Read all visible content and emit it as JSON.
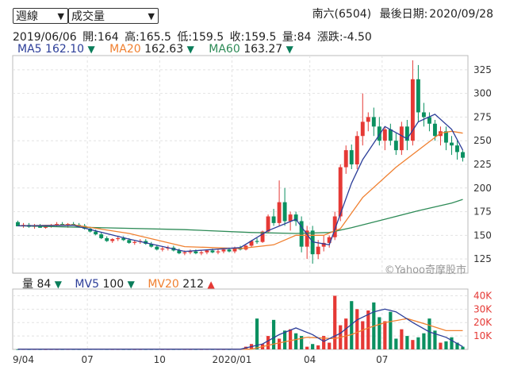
{
  "controls": {
    "period": "週線",
    "indicator": "成交量"
  },
  "header": {
    "stock": "南六(6504)",
    "last_date_label": "最後日期:",
    "last_date": "2020/09/28"
  },
  "ohlc": {
    "date": "2019/06/06",
    "open_label": "開:",
    "open": "164",
    "high_label": "高:",
    "high": "165.5",
    "low_label": "低:",
    "low": "159.5",
    "close_label": "收:",
    "close": "159.5",
    "volume_label": "量:",
    "volume": "84",
    "change_label": "漲跌:",
    "change": "-4.50"
  },
  "colors": {
    "up": "#e53935",
    "down": "#0a9060",
    "ma5": "#2c3e99",
    "ma20": "#f08030",
    "ma60": "#2e8b57"
  },
  "chart_data": [
    {
      "type": "candlestick",
      "watermark": "©Yahoo奇摩股市",
      "ylim": [
        110,
        340
      ],
      "y_ticks": [
        125,
        150,
        175,
        200,
        225,
        250,
        275,
        300,
        325
      ],
      "x_ticks": [
        "9/04",
        "07",
        "10",
        "2020/01",
        "04",
        "07"
      ],
      "legend": [
        {
          "name": "MA5",
          "value": "162.10",
          "dir": "down",
          "color": "#2c3e99"
        },
        {
          "name": "MA20",
          "value": "162.63",
          "dir": "down",
          "color": "#f08030"
        },
        {
          "name": "MA60",
          "value": "163.27",
          "dir": "down",
          "color": "#2e8b57"
        }
      ],
      "ohlc": [
        [
          164,
          165.5,
          159.5,
          159.5
        ],
        [
          160,
          163,
          158,
          161
        ],
        [
          161,
          163,
          158,
          159
        ],
        [
          159,
          162,
          157,
          160
        ],
        [
          160,
          162,
          158,
          158
        ],
        [
          158,
          161,
          157,
          160
        ],
        [
          160,
          162,
          158,
          161
        ],
        [
          161,
          164,
          159,
          162
        ],
        [
          162,
          164,
          160,
          160
        ],
        [
          160,
          163,
          158,
          162
        ],
        [
          162,
          164,
          160,
          161
        ],
        [
          161,
          163,
          159,
          160
        ],
        [
          160,
          162,
          156,
          157
        ],
        [
          157,
          159,
          153,
          154
        ],
        [
          154,
          156,
          150,
          151
        ],
        [
          151,
          153,
          146,
          147
        ],
        [
          147,
          149,
          143,
          144
        ],
        [
          144,
          147,
          142,
          146
        ],
        [
          146,
          149,
          144,
          147
        ],
        [
          147,
          149,
          144,
          145
        ],
        [
          145,
          147,
          141,
          142
        ],
        [
          142,
          145,
          140,
          143
        ],
        [
          143,
          146,
          141,
          144
        ],
        [
          144,
          146,
          140,
          141
        ],
        [
          141,
          143,
          137,
          138
        ],
        [
          138,
          140,
          134,
          135
        ],
        [
          135,
          138,
          133,
          136
        ],
        [
          136,
          139,
          134,
          137
        ],
        [
          137,
          139,
          133,
          134
        ],
        [
          134,
          136,
          130,
          131
        ],
        [
          131,
          134,
          129,
          132
        ],
        [
          132,
          135,
          130,
          133
        ],
        [
          133,
          135,
          130,
          131
        ],
        [
          131,
          134,
          129,
          132
        ],
        [
          132,
          135,
          130,
          134
        ],
        [
          134,
          136,
          131,
          132
        ],
        [
          132,
          135,
          130,
          133
        ],
        [
          133,
          136,
          131,
          135
        ],
        [
          135,
          137,
          132,
          133
        ],
        [
          133,
          138,
          131,
          137
        ],
        [
          137,
          139,
          134,
          135
        ],
        [
          135,
          140,
          134,
          139
        ],
        [
          139,
          145,
          137,
          144
        ],
        [
          144,
          147,
          141,
          143
        ],
        [
          143,
          155,
          142,
          154
        ],
        [
          154,
          172,
          152,
          170
        ],
        [
          170,
          178,
          160,
          163
        ],
        [
          163,
          208,
          160,
          185
        ],
        [
          185,
          200,
          160,
          165
        ],
        [
          165,
          175,
          155,
          172
        ],
        [
          172,
          175,
          160,
          165
        ],
        [
          165,
          170,
          132,
          138
        ],
        [
          138,
          160,
          125,
          155
        ],
        [
          155,
          160,
          120,
          130
        ],
        [
          130,
          145,
          125,
          138
        ],
        [
          138,
          150,
          133,
          142
        ],
        [
          142,
          150,
          137,
          148
        ],
        [
          148,
          175,
          145,
          170
        ],
        [
          170,
          225,
          165,
          222
        ],
        [
          222,
          245,
          215,
          240
        ],
        [
          240,
          246,
          220,
          225
        ],
        [
          225,
          260,
          220,
          255
        ],
        [
          255,
          300,
          245,
          270
        ],
        [
          270,
          280,
          260,
          275
        ],
        [
          275,
          285,
          255,
          265
        ],
        [
          265,
          275,
          245,
          250
        ],
        [
          250,
          265,
          240,
          262
        ],
        [
          262,
          268,
          245,
          250
        ],
        [
          250,
          258,
          235,
          240
        ],
        [
          240,
          270,
          235,
          265
        ],
        [
          265,
          272,
          240,
          250
        ],
        [
          250,
          335,
          245,
          315
        ],
        [
          315,
          330,
          270,
          280
        ],
        [
          280,
          290,
          265,
          275
        ],
        [
          275,
          280,
          260,
          268
        ],
        [
          268,
          272,
          250,
          255
        ],
        [
          255,
          265,
          245,
          260
        ],
        [
          260,
          265,
          240,
          248
        ],
        [
          248,
          255,
          235,
          245
        ],
        [
          245,
          250,
          230,
          238
        ],
        [
          238,
          240,
          228,
          232
        ]
      ],
      "ma": {
        "MA5": [
          [
            0,
            160
          ],
          [
            10,
            160.5
          ],
          [
            20,
            146
          ],
          [
            30,
            133
          ],
          [
            40,
            137
          ],
          [
            45,
            155
          ],
          [
            50,
            167
          ],
          [
            53,
            143
          ],
          [
            56,
            140
          ],
          [
            60,
            205
          ],
          [
            62,
            230
          ],
          [
            66,
            265
          ],
          [
            70,
            252
          ],
          [
            72,
            270
          ],
          [
            75,
            278
          ],
          [
            78,
            262
          ],
          [
            80,
            240
          ]
        ],
        "MA20": [
          [
            0,
            160
          ],
          [
            10,
            161
          ],
          [
            20,
            152
          ],
          [
            30,
            138
          ],
          [
            40,
            136
          ],
          [
            46,
            140
          ],
          [
            50,
            150
          ],
          [
            55,
            150
          ],
          [
            58,
            157
          ],
          [
            62,
            190
          ],
          [
            68,
            222
          ],
          [
            72,
            240
          ],
          [
            76,
            258
          ],
          [
            78,
            260
          ],
          [
            80,
            258
          ]
        ],
        "MA60": [
          [
            0,
            160
          ],
          [
            30,
            156
          ],
          [
            42,
            153
          ],
          [
            50,
            152
          ],
          [
            56,
            153
          ],
          [
            60,
            158
          ],
          [
            66,
            167
          ],
          [
            72,
            176
          ],
          [
            78,
            184
          ],
          [
            80,
            188
          ]
        ]
      }
    },
    {
      "type": "bar",
      "title_label": "量",
      "title_value": "84",
      "ylim": [
        0,
        45000
      ],
      "y_ticks": [
        "10K",
        "20K",
        "30K",
        "40K"
      ],
      "y_tick_values": [
        10000,
        20000,
        30000,
        40000
      ],
      "legend": [
        {
          "name": "MV5",
          "value": "100",
          "dir": "down",
          "color": "#2c3e99"
        },
        {
          "name": "MV20",
          "value": "212",
          "dir": "up",
          "color": "#f08030"
        }
      ],
      "volume": [
        84,
        120,
        90,
        110,
        95,
        80,
        100,
        85,
        90,
        110,
        100,
        95,
        120,
        130,
        150,
        140,
        110,
        95,
        100,
        85,
        90,
        80,
        85,
        95,
        100,
        110,
        90,
        85,
        95,
        120,
        100,
        90,
        95,
        85,
        110,
        100,
        95,
        90,
        100,
        150,
        300,
        2000,
        4000,
        23000,
        4000,
        10000,
        22000,
        8000,
        14000,
        15000,
        12000,
        10000,
        2000,
        4000,
        3000,
        10000,
        5000,
        40000,
        18000,
        23000,
        36000,
        30000,
        21000,
        29000,
        35000,
        24000,
        21000,
        28000,
        8000,
        15000,
        10000,
        7000,
        9000,
        12000,
        23000,
        14000,
        5000,
        6000,
        9000,
        5000,
        2000
      ],
      "mv5": [
        [
          0,
          100
        ],
        [
          40,
          100
        ],
        [
          44,
          4000
        ],
        [
          47,
          11000
        ],
        [
          50,
          16000
        ],
        [
          53,
          11000
        ],
        [
          55,
          6000
        ],
        [
          58,
          12000
        ],
        [
          61,
          22000
        ],
        [
          64,
          28000
        ],
        [
          66,
          30000
        ],
        [
          68,
          28000
        ],
        [
          71,
          20000
        ],
        [
          74,
          13000
        ],
        [
          77,
          9000
        ],
        [
          80,
          2000
        ]
      ],
      "mv20": [
        [
          0,
          200
        ],
        [
          42,
          200
        ],
        [
          46,
          4000
        ],
        [
          52,
          9000
        ],
        [
          57,
          8000
        ],
        [
          60,
          11000
        ],
        [
          63,
          16000
        ],
        [
          66,
          20000
        ],
        [
          70,
          23000
        ],
        [
          74,
          18000
        ],
        [
          77,
          14000
        ],
        [
          80,
          14000
        ]
      ]
    }
  ]
}
